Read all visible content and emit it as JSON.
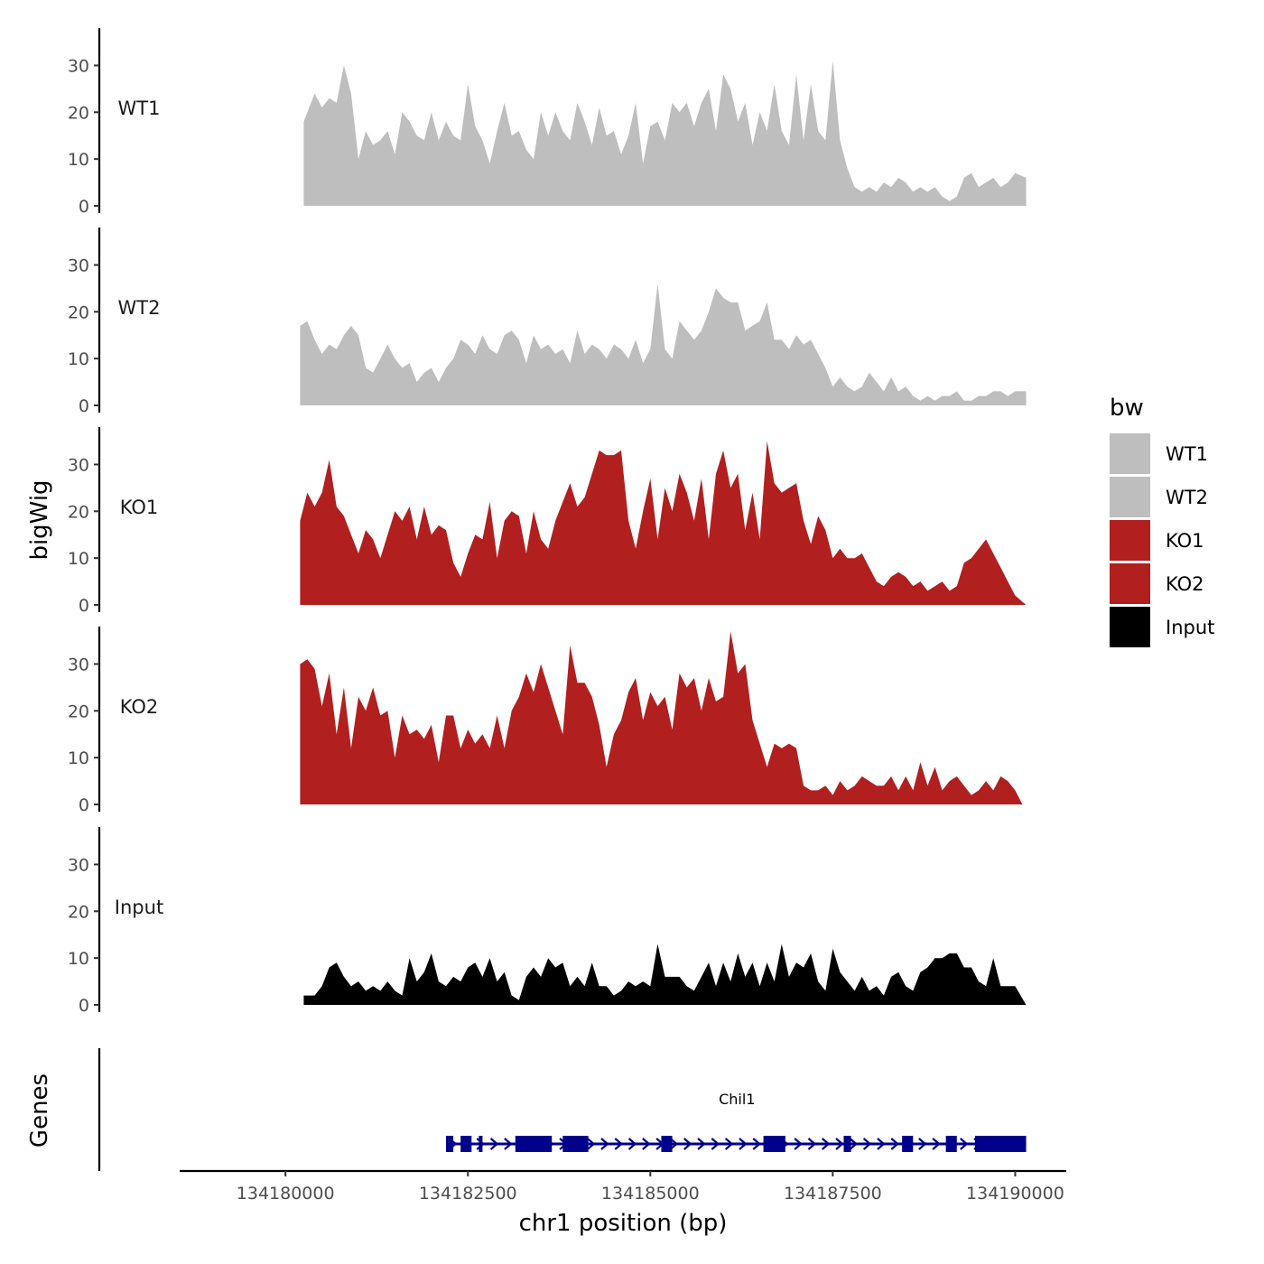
{
  "chart_data": {
    "type": "area",
    "xlabel": "chr1 position (bp)",
    "ylabel": "bigWig",
    "genes_label": "Genes",
    "x_ticks": [
      134180000,
      134182500,
      134185000,
      134187500,
      134190000
    ],
    "x_tick_labels": [
      "134180000",
      "134182500",
      "134185000",
      "134187500",
      "134190000"
    ],
    "xlim": [
      134178550,
      134190700
    ],
    "ylim": [
      0,
      38
    ],
    "y_ticks": [
      0,
      10,
      20,
      30
    ],
    "y_tick_labels": [
      "0",
      "10",
      "20",
      "30"
    ],
    "legend_title": "bw",
    "legend_position": "right",
    "series": [
      {
        "name": "WT1",
        "color": "#bebebe",
        "x": [
          134180250,
          134180400,
          134180500,
          134180600,
          134180700,
          134180800,
          134180900,
          134181000,
          134181100,
          134181200,
          134181300,
          134181400,
          134181500,
          134181600,
          134181700,
          134181800,
          134181900,
          134182000,
          134182100,
          134182200,
          134182300,
          134182400,
          134182500,
          134182600,
          134182700,
          134182800,
          134182900,
          134183000,
          134183100,
          134183200,
          134183300,
          134183400,
          134183500,
          134183600,
          134183700,
          134183800,
          134183900,
          134184000,
          134184100,
          134184200,
          134184300,
          134184400,
          134184500,
          134184600,
          134184700,
          134184800,
          134184900,
          134185000,
          134185100,
          134185200,
          134185300,
          134185400,
          134185500,
          134185600,
          134185700,
          134185800,
          134185900,
          134186000,
          134186100,
          134186200,
          134186300,
          134186400,
          134186500,
          134186600,
          134186700,
          134186800,
          134186900,
          134187000,
          134187100,
          134187200,
          134187300,
          134187400,
          134187500,
          134187600,
          134187700,
          134187800,
          134187900,
          134188000,
          134188100,
          134188200,
          134188300,
          134188400,
          134188500,
          134188600,
          134188700,
          134188800,
          134188900,
          134189000,
          134189100,
          134189200,
          134189300,
          134189400,
          134189500,
          134189600,
          134189700,
          134189800,
          134189900,
          134190000,
          134190150
        ],
        "values": [
          18,
          24,
          21,
          23,
          22,
          30,
          24,
          10,
          16,
          13,
          14,
          16,
          11,
          20,
          18,
          15,
          14,
          20,
          14,
          18,
          15,
          14,
          26,
          17,
          14,
          9,
          16,
          22,
          15,
          16,
          12,
          10,
          20,
          15,
          20,
          16,
          14,
          22,
          18,
          13,
          21,
          15,
          16,
          11,
          15,
          22,
          9,
          17,
          18,
          14,
          22,
          20,
          22,
          17,
          22,
          25,
          16,
          28,
          25,
          18,
          22,
          13,
          20,
          16,
          26,
          16,
          13,
          28,
          14,
          26,
          16,
          14,
          31,
          14,
          8,
          4,
          3,
          4,
          3,
          5,
          4,
          6,
          5,
          3,
          4,
          3,
          4,
          2,
          1,
          2,
          6,
          7,
          4,
          5,
          6,
          4,
          5,
          7,
          6
        ]
      },
      {
        "name": "WT2",
        "color": "#bebebe",
        "x": [
          134180200,
          134180300,
          134180400,
          134180500,
          134180600,
          134180700,
          134180800,
          134180900,
          134181000,
          134181100,
          134181200,
          134181300,
          134181400,
          134181500,
          134181600,
          134181700,
          134181800,
          134181900,
          134182000,
          134182100,
          134182200,
          134182300,
          134182400,
          134182500,
          134182600,
          134182700,
          134182800,
          134182900,
          134183000,
          134183100,
          134183200,
          134183300,
          134183400,
          134183500,
          134183600,
          134183700,
          134183800,
          134183900,
          134184000,
          134184100,
          134184200,
          134184300,
          134184400,
          134184500,
          134184600,
          134184700,
          134184800,
          134184900,
          134185000,
          134185100,
          134185200,
          134185300,
          134185400,
          134185500,
          134185600,
          134185700,
          134185800,
          134185900,
          134186000,
          134186100,
          134186200,
          134186300,
          134186400,
          134186500,
          134186600,
          134186700,
          134186800,
          134186900,
          134187000,
          134187100,
          134187200,
          134187300,
          134187400,
          134187500,
          134187600,
          134187700,
          134187800,
          134187900,
          134188000,
          134188100,
          134188200,
          134188300,
          134188400,
          134188500,
          134188600,
          134188700,
          134188800,
          134188900,
          134189000,
          134189100,
          134189200,
          134189300,
          134189400,
          134189500,
          134189600,
          134189700,
          134189800,
          134189900,
          134190000,
          134190150
        ],
        "values": [
          17,
          18,
          14,
          11,
          13,
          12,
          15,
          17,
          15,
          8,
          7,
          10,
          13,
          10,
          8,
          9,
          5,
          7,
          8,
          5,
          8,
          10,
          14,
          13,
          11,
          15,
          12,
          11,
          15,
          16,
          14,
          9,
          15,
          12,
          13,
          11,
          12,
          9,
          16,
          11,
          13,
          12,
          10,
          13,
          12,
          10,
          14,
          9,
          12,
          26,
          12,
          10,
          18,
          16,
          14,
          16,
          20,
          25,
          23,
          22,
          22,
          16,
          17,
          18,
          22,
          14,
          14,
          12,
          15,
          13,
          14,
          11,
          8,
          4,
          6,
          4,
          3,
          4,
          7,
          5,
          3,
          6,
          3,
          4,
          2,
          1,
          2,
          1,
          2,
          2,
          3,
          1,
          1,
          2,
          2,
          3,
          3,
          2,
          3,
          3
        ]
      },
      {
        "name": "KO1",
        "color": "#b21f1f",
        "x": [
          134180200,
          134180300,
          134180400,
          134180500,
          134180600,
          134180700,
          134180800,
          134180900,
          134181000,
          134181100,
          134181200,
          134181300,
          134181400,
          134181500,
          134181600,
          134181700,
          134181800,
          134181900,
          134182000,
          134182100,
          134182200,
          134182300,
          134182400,
          134182500,
          134182600,
          134182700,
          134182800,
          134182900,
          134183000,
          134183100,
          134183200,
          134183300,
          134183400,
          134183500,
          134183600,
          134183700,
          134183800,
          134183900,
          134184000,
          134184100,
          134184200,
          134184300,
          134184400,
          134184500,
          134184600,
          134184700,
          134184800,
          134184900,
          134185000,
          134185100,
          134185200,
          134185300,
          134185400,
          134185500,
          134185600,
          134185700,
          134185800,
          134185900,
          134186000,
          134186100,
          134186200,
          134186300,
          134186400,
          134186500,
          134186600,
          134186700,
          134186800,
          134186900,
          134187000,
          134187100,
          134187200,
          134187300,
          134187400,
          134187500,
          134187600,
          134187700,
          134187800,
          134187900,
          134188000,
          134188100,
          134188200,
          134188300,
          134188400,
          134188500,
          134188600,
          134188700,
          134188800,
          134188900,
          134189000,
          134189100,
          134189200,
          134189300,
          134189400,
          134189500,
          134189600,
          134189700,
          134189800,
          134189900,
          134190000,
          134190150
        ],
        "values": [
          18,
          24,
          21,
          24,
          31,
          21,
          19,
          15,
          11,
          16,
          14,
          10,
          15,
          20,
          18,
          21,
          14,
          21,
          15,
          17,
          16,
          9,
          6,
          11,
          15,
          14,
          22,
          10,
          18,
          20,
          19,
          11,
          20,
          14,
          12,
          18,
          22,
          26,
          21,
          23,
          28,
          33,
          32,
          32,
          33,
          18,
          12,
          20,
          27,
          14,
          25,
          20,
          28,
          24,
          18,
          27,
          14,
          28,
          33,
          25,
          28,
          16,
          24,
          14,
          35,
          26,
          24,
          25,
          26,
          18,
          13,
          19,
          16,
          10,
          12,
          10,
          10,
          11,
          8,
          5,
          4,
          6,
          7,
          6,
          4,
          5,
          3,
          4,
          5,
          3,
          4,
          9,
          10,
          12,
          14,
          11,
          8,
          5,
          2,
          0
        ]
      },
      {
        "name": "KO2",
        "color": "#b21f1f",
        "x": [
          134180200,
          134180300,
          134180400,
          134180500,
          134180600,
          134180700,
          134180800,
          134180900,
          134181000,
          134181100,
          134181200,
          134181300,
          134181400,
          134181500,
          134181600,
          134181700,
          134181800,
          134181900,
          134182000,
          134182100,
          134182200,
          134182300,
          134182400,
          134182500,
          134182600,
          134182700,
          134182800,
          134182900,
          134183000,
          134183100,
          134183200,
          134183300,
          134183400,
          134183500,
          134183600,
          134183700,
          134183800,
          134183900,
          134184000,
          134184100,
          134184200,
          134184300,
          134184400,
          134184500,
          134184600,
          134184700,
          134184800,
          134184900,
          134185000,
          134185100,
          134185200,
          134185300,
          134185400,
          134185500,
          134185600,
          134185700,
          134185800,
          134185900,
          134186000,
          134186100,
          134186200,
          134186300,
          134186400,
          134186500,
          134186600,
          134186700,
          134186800,
          134186900,
          134187000,
          134187100,
          134187200,
          134187300,
          134187400,
          134187500,
          134187600,
          134187700,
          134187800,
          134187900,
          134188000,
          134188100,
          134188200,
          134188300,
          134188400,
          134188500,
          134188600,
          134188700,
          134188800,
          134188900,
          134189000,
          134189100,
          134189200,
          134189300,
          134189400,
          134189500,
          134189600,
          134189700,
          134189800,
          134189900,
          134190000,
          134190100
        ],
        "values": [
          30,
          31,
          29,
          21,
          28,
          15,
          25,
          12,
          23,
          20,
          25,
          19,
          20,
          10,
          19,
          15,
          16,
          14,
          17,
          9,
          19,
          19,
          12,
          16,
          13,
          15,
          12,
          19,
          12,
          20,
          23,
          28,
          24,
          30,
          25,
          20,
          15,
          34,
          26,
          26,
          23,
          17,
          8,
          15,
          18,
          24,
          27,
          18,
          24,
          21,
          23,
          16,
          28,
          25,
          27,
          20,
          27,
          22,
          23,
          37,
          28,
          30,
          18,
          13,
          8,
          13,
          12,
          13,
          12,
          4,
          3,
          3,
          4,
          2,
          5,
          3,
          4,
          6,
          5,
          4,
          4,
          6,
          3,
          6,
          3,
          9,
          4,
          8,
          3,
          5,
          6,
          4,
          2,
          3,
          5,
          3,
          6,
          5,
          3,
          0
        ]
      },
      {
        "name": "Input",
        "color": "#000000",
        "x": [
          134180250,
          134180400,
          134180500,
          134180600,
          134180700,
          134180800,
          134180900,
          134181000,
          134181100,
          134181200,
          134181300,
          134181400,
          134181500,
          134181600,
          134181700,
          134181800,
          134181900,
          134182000,
          134182100,
          134182200,
          134182300,
          134182400,
          134182500,
          134182600,
          134182700,
          134182800,
          134182900,
          134183000,
          134183100,
          134183200,
          134183300,
          134183400,
          134183500,
          134183600,
          134183700,
          134183800,
          134183900,
          134184000,
          134184100,
          134184200,
          134184300,
          134184400,
          134184500,
          134184600,
          134184700,
          134184800,
          134184900,
          134185000,
          134185100,
          134185200,
          134185300,
          134185400,
          134185500,
          134185600,
          134185700,
          134185800,
          134185900,
          134186000,
          134186100,
          134186200,
          134186300,
          134186400,
          134186500,
          134186600,
          134186700,
          134186800,
          134186900,
          134187000,
          134187100,
          134187200,
          134187300,
          134187400,
          134187500,
          134187600,
          134187700,
          134187800,
          134187900,
          134188000,
          134188100,
          134188200,
          134188300,
          134188400,
          134188500,
          134188600,
          134188700,
          134188800,
          134188900,
          134189000,
          134189100,
          134189200,
          134189300,
          134189400,
          134189500,
          134189600,
          134189700,
          134189800,
          134189900,
          134190000,
          134190150
        ],
        "values": [
          2,
          2,
          4,
          8,
          9,
          6,
          4,
          5,
          3,
          4,
          3,
          5,
          3,
          2,
          10,
          5,
          7,
          11,
          5,
          4,
          6,
          5,
          8,
          9,
          6,
          10,
          5,
          7,
          2,
          1,
          6,
          8,
          6,
          10,
          8,
          9,
          4,
          6,
          4,
          9,
          4,
          4,
          2,
          3,
          5,
          4,
          5,
          4,
          13,
          6,
          6,
          6,
          4,
          3,
          6,
          9,
          4,
          9,
          5,
          11,
          6,
          9,
          4,
          9,
          5,
          13,
          6,
          9,
          8,
          11,
          5,
          3,
          12,
          7,
          5,
          3,
          6,
          3,
          4,
          2,
          6,
          7,
          4,
          3,
          7,
          8,
          10,
          10,
          11,
          11,
          8,
          8,
          5,
          4,
          10,
          4,
          4,
          4,
          0
        ]
      }
    ],
    "gene": {
      "name": "Chil1",
      "color": "#00008b",
      "start": 134182200,
      "end": 134190150,
      "strand": "+",
      "exons": [
        [
          134182200,
          134182300
        ],
        [
          134182400,
          134182550
        ],
        [
          134182650,
          134182700
        ],
        [
          134183150,
          134183400
        ],
        [
          134183400,
          134183650
        ],
        [
          134183800,
          134184150
        ],
        [
          134185150,
          134185300
        ],
        [
          134186550,
          134186850
        ],
        [
          134187650,
          134187750
        ],
        [
          134188450,
          134188600
        ],
        [
          134189050,
          134189200
        ],
        [
          134189450,
          134190150
        ]
      ]
    }
  }
}
